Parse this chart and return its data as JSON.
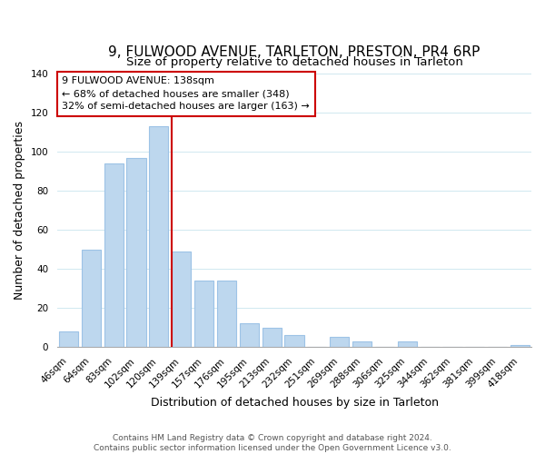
{
  "title": "9, FULWOOD AVENUE, TARLETON, PRESTON, PR4 6RP",
  "subtitle": "Size of property relative to detached houses in Tarleton",
  "xlabel": "Distribution of detached houses by size in Tarleton",
  "ylabel": "Number of detached properties",
  "bar_labels": [
    "46sqm",
    "64sqm",
    "83sqm",
    "102sqm",
    "120sqm",
    "139sqm",
    "157sqm",
    "176sqm",
    "195sqm",
    "213sqm",
    "232sqm",
    "251sqm",
    "269sqm",
    "288sqm",
    "306sqm",
    "325sqm",
    "344sqm",
    "362sqm",
    "381sqm",
    "399sqm",
    "418sqm"
  ],
  "bar_values": [
    8,
    50,
    94,
    97,
    113,
    49,
    34,
    34,
    12,
    10,
    6,
    0,
    5,
    3,
    0,
    3,
    0,
    0,
    0,
    0,
    1
  ],
  "bar_color": "#bdd7ee",
  "bar_edge_color": "#9dc3e6",
  "annotation_title": "9 FULWOOD AVENUE: 138sqm",
  "annotation_line1": "← 68% of detached houses are smaller (348)",
  "annotation_line2": "32% of semi-detached houses are larger (163) →",
  "annotation_box_color": "#ffffff",
  "annotation_border_color": "#cc0000",
  "vline_index": 5,
  "vline_color": "#cc0000",
  "ylim": [
    0,
    140
  ],
  "yticks": [
    0,
    20,
    40,
    60,
    80,
    100,
    120,
    140
  ],
  "footer_line1": "Contains HM Land Registry data © Crown copyright and database right 2024.",
  "footer_line2": "Contains public sector information licensed under the Open Government Licence v3.0.",
  "title_fontsize": 11,
  "subtitle_fontsize": 9.5,
  "axis_label_fontsize": 9,
  "tick_fontsize": 7.5,
  "footer_fontsize": 6.5,
  "annotation_fontsize": 8
}
